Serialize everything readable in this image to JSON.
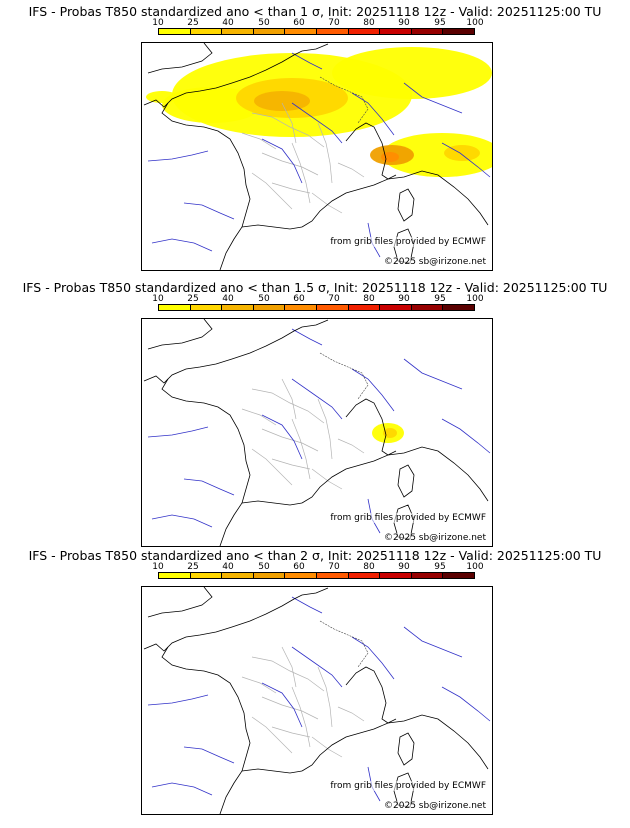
{
  "scale": {
    "labels": [
      "10",
      "25",
      "40",
      "50",
      "60",
      "70",
      "80",
      "90",
      "95",
      "100"
    ],
    "colors": [
      "#ffff00",
      "#ffd700",
      "#f5b400",
      "#f0a000",
      "#ff8c00",
      "#ff5a00",
      "#f02000",
      "#c80000",
      "#960000",
      "#5a0000"
    ]
  },
  "panels": [
    {
      "title": "IFS - Probas T850  standardized ano < than 1 σ, Init: 20251118 12z - Valid: 20251125:00 TU",
      "source": "from grib files provided by ECMWF",
      "copyright": "©2025 sb@irizone.net",
      "highlight_level": "high"
    },
    {
      "title": "IFS - Probas T850  standardized ano < than 1.5 σ, Init: 20251118 12z - Valid: 20251125:00 TU",
      "source": "from grib files provided by ECMWF",
      "copyright": "©2025 sb@irizone.net",
      "highlight_level": "low"
    },
    {
      "title": "IFS - Probas T850  standardized ano < than 2 σ, Init: 20251118 12z - Valid: 20251125:00 TU",
      "source": "from grib files provided by ECMWF",
      "copyright": "©2025 sb@irizone.net",
      "highlight_level": "none"
    }
  ]
}
